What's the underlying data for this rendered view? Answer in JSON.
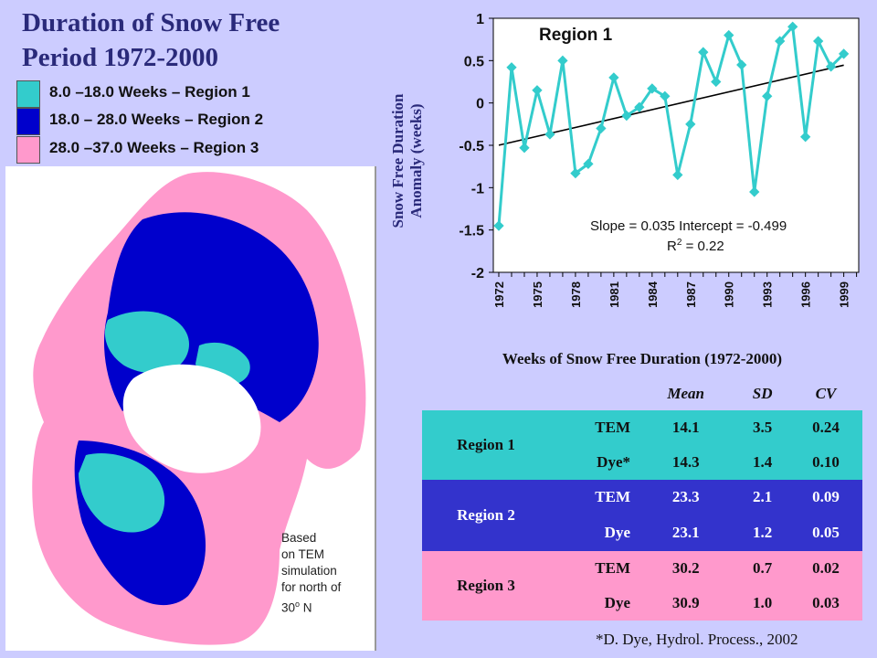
{
  "title": {
    "line1": "Duration of Snow Free",
    "line2": "Period 1972-2000"
  },
  "legend": [
    {
      "label": "8.0 –18.0 Weeks – Region 1",
      "color": "#33cccc"
    },
    {
      "label": "18.0 – 28.0 Weeks – Region 2",
      "color": "#0000cc"
    },
    {
      "label": "28.0 –37.0 Weeks – Region 3",
      "color": "#ff99cc"
    }
  ],
  "map": {
    "note_lines": [
      "Based",
      "on TEM",
      "simulation",
      "for north of"
    ],
    "note_last_prefix": "30",
    "note_last_sup": "o",
    "note_last_suffix": " N"
  },
  "chart_data": {
    "type": "line",
    "title": "Region 1",
    "ylabel_line1": "Snow Free Duration",
    "ylabel_line2": "Anomaly (weeks)",
    "ylim": [
      -2,
      1
    ],
    "yticks": [
      1,
      0.5,
      0,
      -0.5,
      -1,
      -1.5,
      -2
    ],
    "ytick_labels": [
      "1",
      "0.5",
      "0",
      "-0.5",
      "-1",
      "-1.5",
      "-2"
    ],
    "xlim": [
      1972,
      2000
    ],
    "xticks": [
      1972,
      1975,
      1978,
      1981,
      1984,
      1987,
      1990,
      1993,
      1996,
      1999
    ],
    "x": [
      1972,
      1973,
      1974,
      1975,
      1976,
      1977,
      1978,
      1979,
      1980,
      1981,
      1982,
      1983,
      1984,
      1985,
      1986,
      1987,
      1988,
      1989,
      1990,
      1991,
      1992,
      1993,
      1994,
      1995,
      1996,
      1997,
      1998,
      1999,
      2000
    ],
    "series": [
      {
        "color": "#33cccc",
        "values": [
          -1.45,
          0.42,
          -0.53,
          0.15,
          -0.37,
          0.5,
          -0.83,
          -0.72,
          -0.3,
          0.3,
          -0.15,
          -0.05,
          0.17,
          0.08,
          -0.85,
          -0.25,
          0.6,
          0.25,
          0.8,
          0.45,
          -1.05,
          0.08,
          0.73,
          0.9,
          -0.4,
          0.73,
          0.43,
          0.58,
          null
        ]
      }
    ],
    "trendline": {
      "slope": 0.035,
      "intercept": -0.499,
      "color": "#000000"
    },
    "annotation_line1": "Slope = 0.035 Intercept = -0.499",
    "annotation_r2_prefix": "R",
    "annotation_r2_sup": "2",
    "annotation_r2_suffix": " = 0.22",
    "grid": false
  },
  "table": {
    "title": "Weeks of Snow Free Duration (1972-2000)",
    "columns": [
      "Mean",
      "SD",
      "CV"
    ],
    "rows": [
      {
        "region": "Region 1",
        "model": "TEM",
        "mean": "14.1",
        "sd": "3.5",
        "cv": "0.24"
      },
      {
        "region": "",
        "model": "Dye*",
        "mean": "14.3",
        "sd": "1.4",
        "cv": "0.10"
      },
      {
        "region": "Region 2",
        "model": "TEM",
        "mean": "23.3",
        "sd": "2.1",
        "cv": "0.09"
      },
      {
        "region": "",
        "model": "Dye",
        "mean": "23.1",
        "sd": "1.2",
        "cv": "0.05"
      },
      {
        "region": "Region 3",
        "model": "TEM",
        "mean": "30.2",
        "sd": "0.7",
        "cv": "0.02"
      },
      {
        "region": "",
        "model": "Dye",
        "mean": "30.9",
        "sd": "1.0",
        "cv": "0.03"
      }
    ],
    "colors": {
      "region1": "#33cccc",
      "region2": "#3333cc",
      "region3": "#ff99cc"
    }
  },
  "citation": "*D. Dye, Hydrol. Process., 2002"
}
